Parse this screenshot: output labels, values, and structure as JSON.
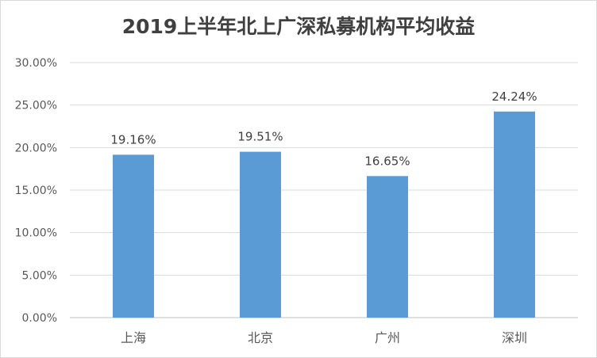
{
  "chart_data": {
    "type": "bar",
    "title": "2019上半年北上广深私募机构平均收益",
    "categories": [
      "上海",
      "北京",
      "广州",
      "深圳"
    ],
    "values": [
      19.16,
      19.51,
      16.65,
      24.24
    ],
    "data_labels": [
      "19.16%",
      "19.51%",
      "16.65%",
      "24.24%"
    ],
    "ylim": [
      0,
      30
    ],
    "yticks": [
      "0.00%",
      "5.00%",
      "10.00%",
      "15.00%",
      "20.00%",
      "25.00%",
      "30.00%"
    ],
    "grid": true,
    "legend": "none",
    "bar_color": "#5b9bd5"
  }
}
